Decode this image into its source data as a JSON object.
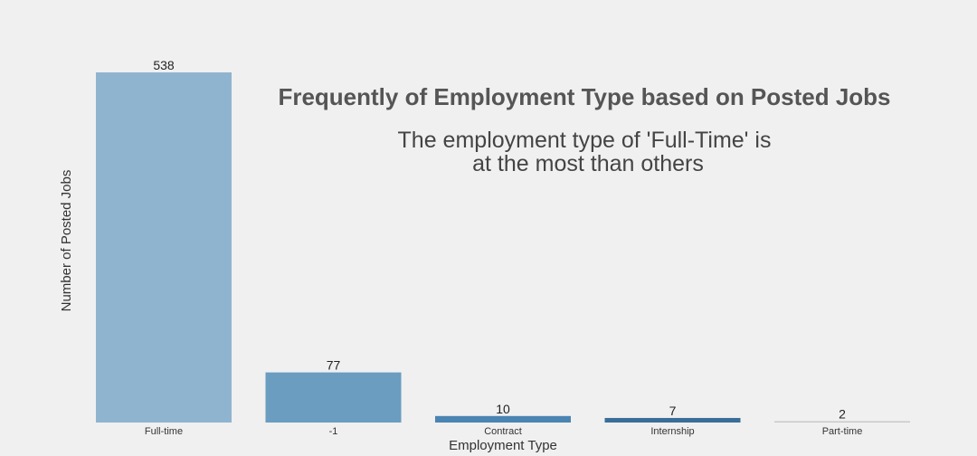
{
  "chart_data": {
    "type": "bar",
    "title": "Frequently of Employment Type based on Posted Jobs",
    "subtitle_lines": [
      "The employment type of 'Full-Time' is",
      "at the most than others"
    ],
    "xlabel": "Employment Type",
    "ylabel": "Number of Posted Jobs",
    "categories": [
      "Full-time",
      "-1",
      "Contract",
      "Internship",
      "Part-time"
    ],
    "values": [
      538,
      77,
      10,
      7,
      2
    ],
    "data_labels": [
      "538",
      "77",
      "10",
      "7",
      "2"
    ],
    "bar_colors": [
      "#8fb4d0",
      "#6a9dc0",
      "#4a84b2",
      "#3a6e98",
      "#c8c8c8"
    ],
    "ylim": [
      0,
      538
    ],
    "grid": false,
    "legend": "none"
  }
}
